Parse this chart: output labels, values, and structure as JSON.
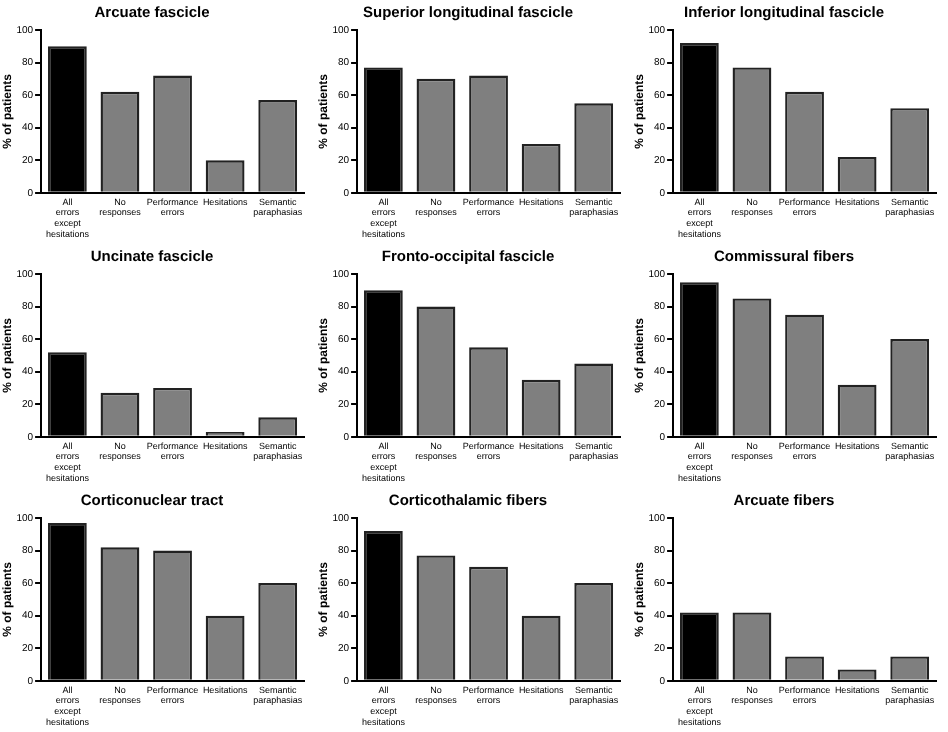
{
  "chart_data": [
    {
      "type": "bar",
      "title": "Arcuate fascicle",
      "ylabel": "% of patients",
      "categories": [
        "All errors except hesitations",
        "No responses",
        "Performance errors",
        "Hesitations",
        "Semantic paraphasias"
      ],
      "values": [
        90,
        62,
        72,
        20,
        57
      ],
      "colors": [
        "#000000",
        "#7f7f7f",
        "#7f7f7f",
        "#7f7f7f",
        "#7f7f7f"
      ],
      "ylim": [
        0,
        100
      ],
      "yticks": [
        0,
        20,
        40,
        60,
        80,
        100
      ],
      "grid": false,
      "legend": false
    },
    {
      "type": "bar",
      "title": "Superior longitudinal fascicle",
      "ylabel": "% of patients",
      "categories": [
        "All errors except hesitations",
        "No responses",
        "Performance errors",
        "Hesitations",
        "Semantic paraphasias"
      ],
      "values": [
        77,
        70,
        72,
        30,
        55
      ],
      "colors": [
        "#000000",
        "#7f7f7f",
        "#7f7f7f",
        "#7f7f7f",
        "#7f7f7f"
      ],
      "ylim": [
        0,
        100
      ],
      "yticks": [
        0,
        20,
        40,
        60,
        80,
        100
      ],
      "grid": false,
      "legend": false
    },
    {
      "type": "bar",
      "title": "Inferior longitudinal fascicle",
      "ylabel": "% of patients",
      "categories": [
        "All errors except hesitations",
        "No responses",
        "Performance errors",
        "Hesitations",
        "Semantic paraphasias"
      ],
      "values": [
        92,
        77,
        62,
        22,
        52
      ],
      "colors": [
        "#000000",
        "#7f7f7f",
        "#7f7f7f",
        "#7f7f7f",
        "#7f7f7f"
      ],
      "ylim": [
        0,
        100
      ],
      "yticks": [
        0,
        20,
        40,
        60,
        80,
        100
      ],
      "grid": false,
      "legend": false
    },
    {
      "type": "bar",
      "title": "Uncinate fascicle",
      "ylabel": "% of patients",
      "categories": [
        "All errors except hesitations",
        "No responses",
        "Performance errors",
        "Hesitations",
        "Semantic paraphasias"
      ],
      "values": [
        52,
        27,
        30,
        3,
        12
      ],
      "colors": [
        "#000000",
        "#7f7f7f",
        "#7f7f7f",
        "#7f7f7f",
        "#7f7f7f"
      ],
      "ylim": [
        0,
        100
      ],
      "yticks": [
        0,
        20,
        40,
        60,
        80,
        100
      ],
      "grid": false,
      "legend": false
    },
    {
      "type": "bar",
      "title": "Fronto-occipital fascicle",
      "ylabel": "% of patients",
      "categories": [
        "All errors except hesitations",
        "No responses",
        "Performance errors",
        "Hesitations",
        "Semantic paraphasias"
      ],
      "values": [
        90,
        80,
        55,
        35,
        45
      ],
      "colors": [
        "#000000",
        "#7f7f7f",
        "#7f7f7f",
        "#7f7f7f",
        "#7f7f7f"
      ],
      "ylim": [
        0,
        100
      ],
      "yticks": [
        0,
        20,
        40,
        60,
        80,
        100
      ],
      "grid": false,
      "legend": false
    },
    {
      "type": "bar",
      "title": "Commissural fibers",
      "ylabel": "% of patients",
      "categories": [
        "All errors except hesitations",
        "No responses",
        "Performance errors",
        "Hesitations",
        "Semantic paraphasias"
      ],
      "values": [
        95,
        85,
        75,
        32,
        60
      ],
      "colors": [
        "#000000",
        "#7f7f7f",
        "#7f7f7f",
        "#7f7f7f",
        "#7f7f7f"
      ],
      "ylim": [
        0,
        100
      ],
      "yticks": [
        0,
        20,
        40,
        60,
        80,
        100
      ],
      "grid": false,
      "legend": false
    },
    {
      "type": "bar",
      "title": "Corticonuclear tract",
      "ylabel": "% of patients",
      "categories": [
        "All errors except hesitations",
        "No responses",
        "Performance errors",
        "Hesitations",
        "Semantic paraphasias"
      ],
      "values": [
        97,
        82,
        80,
        40,
        60
      ],
      "colors": [
        "#000000",
        "#7f7f7f",
        "#7f7f7f",
        "#7f7f7f",
        "#7f7f7f"
      ],
      "ylim": [
        0,
        100
      ],
      "yticks": [
        0,
        20,
        40,
        60,
        80,
        100
      ],
      "grid": false,
      "legend": false
    },
    {
      "type": "bar",
      "title": "Corticothalamic fibers",
      "ylabel": "% of patients",
      "categories": [
        "All errors except hesitations",
        "No responses",
        "Performance errors",
        "Hesitations",
        "Semantic paraphasias"
      ],
      "values": [
        92,
        77,
        70,
        40,
        60
      ],
      "colors": [
        "#000000",
        "#7f7f7f",
        "#7f7f7f",
        "#7f7f7f",
        "#7f7f7f"
      ],
      "ylim": [
        0,
        100
      ],
      "yticks": [
        0,
        20,
        40,
        60,
        80,
        100
      ],
      "grid": false,
      "legend": false
    },
    {
      "type": "bar",
      "title": "Arcuate fibers",
      "ylabel": "% of patients",
      "categories": [
        "All errors except hesitations",
        "No responses",
        "Performance errors",
        "Hesitations",
        "Semantic paraphasias"
      ],
      "values": [
        42,
        42,
        15,
        7,
        15
      ],
      "colors": [
        "#000000",
        "#7f7f7f",
        "#7f7f7f",
        "#7f7f7f",
        "#7f7f7f"
      ],
      "ylim": [
        0,
        100
      ],
      "yticks": [
        0,
        20,
        40,
        60,
        80,
        100
      ],
      "grid": false,
      "legend": false
    }
  ]
}
